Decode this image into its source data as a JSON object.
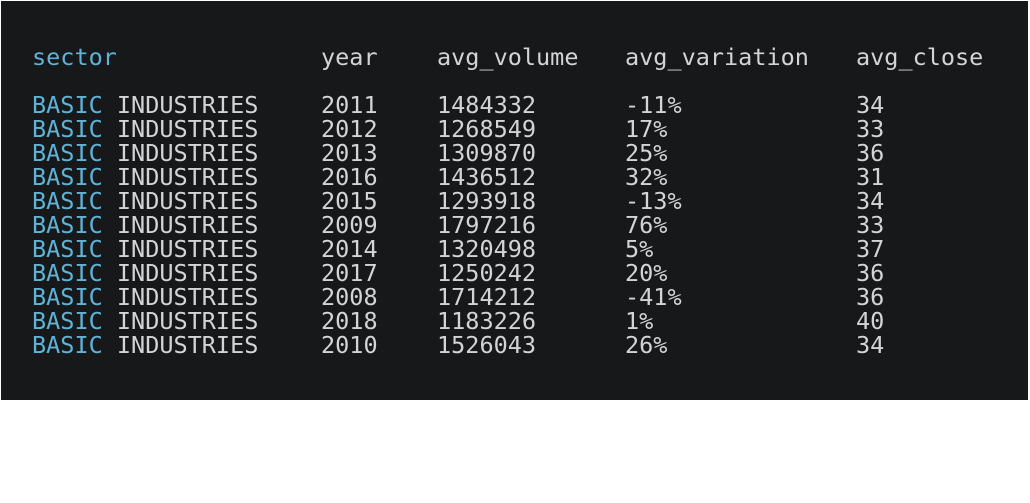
{
  "theme": {
    "background": "#17181a",
    "text": "#d3d4d5",
    "accent": "#5eb3d6"
  },
  "table": {
    "columns": [
      "sector",
      "year",
      "avg_volume",
      "avg_variation",
      "avg_close"
    ],
    "rows": [
      {
        "sector_first": "BASIC",
        "sector_rest": " INDUSTRIES",
        "year": "2011",
        "avg_volume": "1484332",
        "avg_variation": "-11%",
        "avg_close": "34"
      },
      {
        "sector_first": "BASIC",
        "sector_rest": " INDUSTRIES",
        "year": "2012",
        "avg_volume": "1268549",
        "avg_variation": "17%",
        "avg_close": "33"
      },
      {
        "sector_first": "BASIC",
        "sector_rest": " INDUSTRIES",
        "year": "2013",
        "avg_volume": "1309870",
        "avg_variation": "25%",
        "avg_close": "36"
      },
      {
        "sector_first": "BASIC",
        "sector_rest": " INDUSTRIES",
        "year": "2016",
        "avg_volume": "1436512",
        "avg_variation": "32%",
        "avg_close": "31"
      },
      {
        "sector_first": "BASIC",
        "sector_rest": " INDUSTRIES",
        "year": "2015",
        "avg_volume": "1293918",
        "avg_variation": "-13%",
        "avg_close": "34"
      },
      {
        "sector_first": "BASIC",
        "sector_rest": " INDUSTRIES",
        "year": "2009",
        "avg_volume": "1797216",
        "avg_variation": "76%",
        "avg_close": "33"
      },
      {
        "sector_first": "BASIC",
        "sector_rest": " INDUSTRIES",
        "year": "2014",
        "avg_volume": "1320498",
        "avg_variation": "5%",
        "avg_close": "37"
      },
      {
        "sector_first": "BASIC",
        "sector_rest": " INDUSTRIES",
        "year": "2017",
        "avg_volume": "1250242",
        "avg_variation": "20%",
        "avg_close": "36"
      },
      {
        "sector_first": "BASIC",
        "sector_rest": " INDUSTRIES",
        "year": "2008",
        "avg_volume": "1714212",
        "avg_variation": "-41%",
        "avg_close": "36"
      },
      {
        "sector_first": "BASIC",
        "sector_rest": " INDUSTRIES",
        "year": "2018",
        "avg_volume": "1183226",
        "avg_variation": "1%",
        "avg_close": "40"
      },
      {
        "sector_first": "BASIC",
        "sector_rest": " INDUSTRIES",
        "year": "2010",
        "avg_volume": "1526043",
        "avg_variation": "26%",
        "avg_close": "34"
      }
    ]
  }
}
